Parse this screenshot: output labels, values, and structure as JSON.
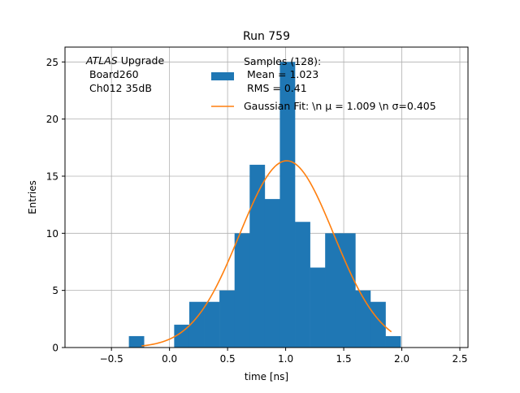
{
  "chart_data": {
    "type": "bar",
    "title": "Run 759",
    "xlabel": "time [ns]",
    "ylabel": "Entries",
    "xlim": [
      -0.9,
      2.57
    ],
    "ylim": [
      0,
      26.3
    ],
    "grid": true,
    "x_ticks": [
      -0.5,
      0.0,
      0.5,
      1.0,
      1.5,
      2.0,
      2.5
    ],
    "x_tick_labels": [
      "−0.5",
      "0.0",
      "0.5",
      "1.0",
      "1.5",
      "2.0",
      "2.5"
    ],
    "y_ticks": [
      0,
      5,
      10,
      15,
      20,
      25
    ],
    "y_tick_labels": [
      "0",
      "5",
      "10",
      "15",
      "20",
      "25"
    ],
    "histogram": {
      "name": "Samples (128):",
      "bin_edges": [
        -0.35,
        -0.22,
        -0.09,
        0.04,
        0.17,
        0.3,
        0.43,
        0.56,
        0.69,
        0.82,
        0.95,
        1.08,
        1.21,
        1.34,
        1.47,
        1.6,
        1.73,
        1.86,
        1.99
      ],
      "counts": [
        1,
        0,
        0,
        2,
        4,
        4,
        5,
        10,
        16,
        13,
        25,
        11,
        7,
        10,
        10,
        5,
        4,
        1
      ],
      "color": "#1f77b4"
    },
    "fit": {
      "name": "Gaussian Fit",
      "mu": 1.009,
      "sigma": 0.405,
      "amplitude": 16.35,
      "x_range": [
        -0.24,
        1.91
      ],
      "color": "#ff7f0e"
    },
    "annotation": {
      "atlas": "ATLAS",
      "line1_rest": " Upgrade",
      "line2": "Board260",
      "line3": "Ch012 35dB"
    },
    "legend": {
      "position": "top-center",
      "hist_line1": "Samples (128):",
      "hist_line2": "Mean = 1.023",
      "hist_line3": "RMS = 0.41",
      "fit_label": "Gaussian Fit: \\n μ = 1.009 \\n σ=0.405"
    }
  }
}
